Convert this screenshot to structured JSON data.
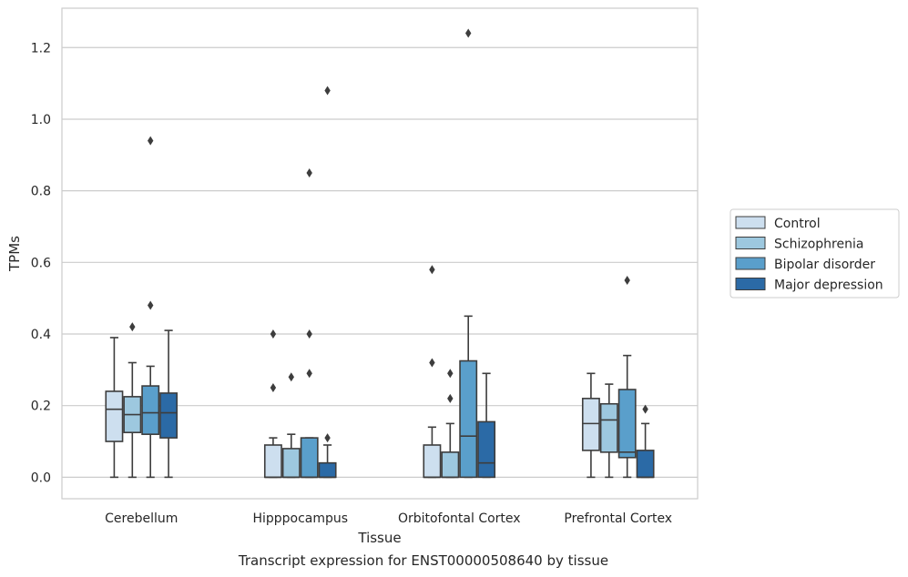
{
  "chart_data": {
    "type": "boxplot",
    "xlabel": "Tissue",
    "ylabel": "TPMs",
    "caption": "Transcript expression for ENST00000508640 by tissue",
    "ylim": [
      -0.06,
      1.31
    ],
    "yticks": [
      0.0,
      0.2,
      0.4,
      0.6,
      0.8,
      1.0,
      1.2
    ],
    "ytick_labels": [
      "0.0",
      "0.2",
      "0.4",
      "0.6",
      "0.8",
      "1.0",
      "1.2"
    ],
    "grid": true,
    "legend_position": "right",
    "categories": [
      "Cerebellum",
      "Hipppocampus",
      "Orbitofontal Cortex",
      "Prefrontal Cortex"
    ],
    "series": [
      {
        "name": "Control",
        "color": "#cddfef",
        "boxes": [
          {
            "whislo": 0.0,
            "q1": 0.1,
            "med": 0.19,
            "q3": 0.24,
            "whishi": 0.39,
            "fliers": []
          },
          {
            "whislo": 0.0,
            "q1": 0.0,
            "med": 0.0,
            "q3": 0.09,
            "whishi": 0.11,
            "fliers": [
              0.25,
              0.4
            ]
          },
          {
            "whislo": 0.0,
            "q1": 0.0,
            "med": 0.0,
            "q3": 0.09,
            "whishi": 0.14,
            "fliers": [
              0.32,
              0.58
            ]
          },
          {
            "whislo": 0.0,
            "q1": 0.075,
            "med": 0.15,
            "q3": 0.22,
            "whishi": 0.29,
            "fliers": []
          }
        ]
      },
      {
        "name": "Schizophrenia",
        "color": "#9dc8df",
        "boxes": [
          {
            "whislo": 0.0,
            "q1": 0.125,
            "med": 0.175,
            "q3": 0.225,
            "whishi": 0.32,
            "fliers": [
              0.42
            ]
          },
          {
            "whislo": 0.0,
            "q1": 0.0,
            "med": 0.0,
            "q3": 0.08,
            "whishi": 0.12,
            "fliers": [
              0.28
            ]
          },
          {
            "whislo": 0.0,
            "q1": 0.0,
            "med": 0.0,
            "q3": 0.07,
            "whishi": 0.15,
            "fliers": [
              0.22,
              0.29
            ]
          },
          {
            "whislo": 0.0,
            "q1": 0.07,
            "med": 0.16,
            "q3": 0.205,
            "whishi": 0.26,
            "fliers": []
          }
        ]
      },
      {
        "name": "Bipolar disorder",
        "color": "#5a9fcb",
        "boxes": [
          {
            "whislo": 0.0,
            "q1": 0.12,
            "med": 0.18,
            "q3": 0.255,
            "whishi": 0.31,
            "fliers": [
              0.48,
              0.94
            ]
          },
          {
            "whislo": 0.0,
            "q1": 0.0,
            "med": 0.0,
            "q3": 0.11,
            "whishi": 0.11,
            "fliers": [
              0.29,
              0.4,
              0.85
            ]
          },
          {
            "whislo": 0.0,
            "q1": 0.0,
            "med": 0.115,
            "q3": 0.325,
            "whishi": 0.45,
            "fliers": [
              1.24
            ]
          },
          {
            "whislo": 0.0,
            "q1": 0.055,
            "med": 0.07,
            "q3": 0.245,
            "whishi": 0.34,
            "fliers": [
              0.55
            ]
          }
        ]
      },
      {
        "name": "Major depression",
        "color": "#2b6aa6",
        "boxes": [
          {
            "whislo": 0.0,
            "q1": 0.11,
            "med": 0.18,
            "q3": 0.235,
            "whishi": 0.41,
            "fliers": []
          },
          {
            "whislo": 0.0,
            "q1": 0.0,
            "med": 0.0,
            "q3": 0.04,
            "whishi": 0.09,
            "fliers": [
              0.11,
              1.08
            ]
          },
          {
            "whislo": 0.0,
            "q1": 0.0,
            "med": 0.04,
            "q3": 0.155,
            "whishi": 0.29,
            "fliers": []
          },
          {
            "whislo": 0.0,
            "q1": 0.0,
            "med": 0.0,
            "q3": 0.075,
            "whishi": 0.15,
            "fliers": [
              0.19
            ]
          }
        ]
      }
    ]
  }
}
